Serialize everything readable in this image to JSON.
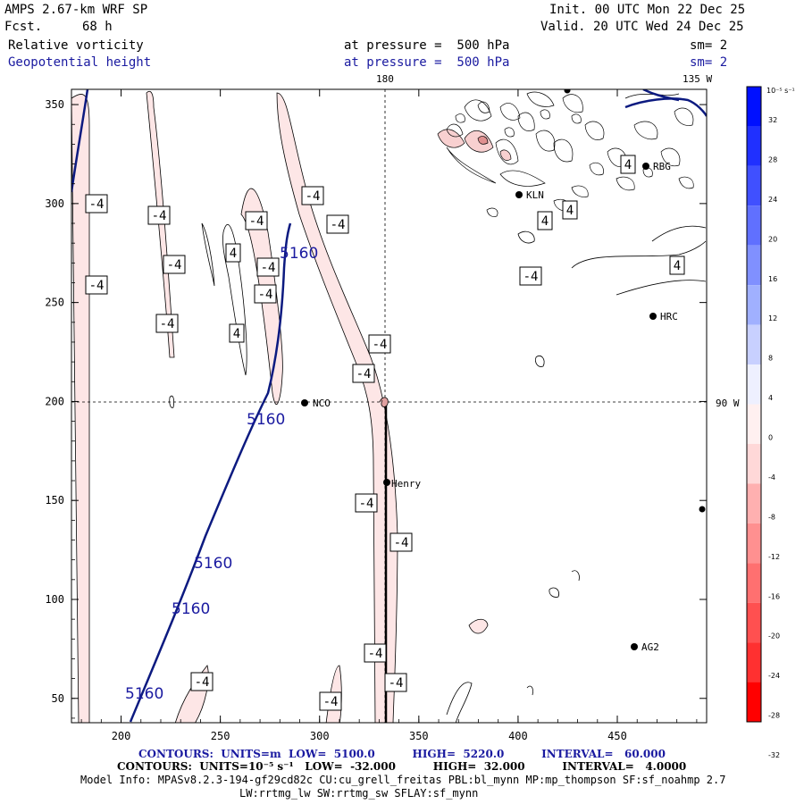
{
  "header": {
    "model": "AMPS 2.67-km WRF SP",
    "fcst_label": "Fcst.",
    "fcst_value": "68 h",
    "init": "Init. 00 UTC Mon 22 Dec 25",
    "valid": "Valid. 20 UTC Wed 24 Dec 25",
    "field1_name": "Relative vorticity",
    "field1_level": "at pressure =  500 hPa",
    "field1_sm": "sm= 2",
    "field2_name": "Geopotential height",
    "field2_level": "at pressure =  500 hPa",
    "field2_sm": "sm= 2"
  },
  "colors": {
    "height_contour": "#0c1a80",
    "vort_contour": "#000000",
    "shade_light": "#fde6e6",
    "accent_blue": "#1a1aa0"
  },
  "map": {
    "x_ticks": [
      "200",
      "250",
      "300",
      "350",
      "400",
      "450"
    ],
    "y_ticks": [
      "350",
      "300",
      "250",
      "200",
      "150",
      "100",
      "50"
    ],
    "lon_top_180": "180",
    "lon_top_135w": "135 W",
    "lon_right_90w": "90 W",
    "stations": [
      {
        "name": "NCO",
        "lx": "NCO"
      },
      {
        "name": "Henry",
        "lx": "Henry"
      },
      {
        "name": "HRC",
        "lx": "HRC"
      },
      {
        "name": "RBG",
        "lx": "RBG"
      },
      {
        "name": "KLN",
        "lx": "KLN"
      },
      {
        "name": "AG2",
        "lx": "AG2"
      }
    ],
    "height_labels": [
      "5160",
      "5160",
      "5160",
      "5160",
      "5160"
    ],
    "vort_labels_neg": "-4",
    "vort_labels_pos": "4"
  },
  "colorbar": {
    "unit": "10⁻⁵ s⁻¹",
    "labels": [
      "32",
      "28",
      "24",
      "20",
      "16",
      "12",
      "8",
      "4",
      "0",
      "-4",
      "-8",
      "-12",
      "-16",
      "-20",
      "-24",
      "-28",
      "-32"
    ],
    "colors": [
      "#0010ff",
      "#2030ff",
      "#4050ff",
      "#6070ff",
      "#8090ff",
      "#a0b0ff",
      "#c8d0ff",
      "#eef0ff",
      "#fff0f0",
      "#ffd8d8",
      "#ffb0b0",
      "#ff9090",
      "#ff7070",
      "#ff5050",
      "#ff3030",
      "#ff0000"
    ]
  },
  "footer": {
    "line1": "CONTOURS:  UNITS=m  LOW=  5100.0          HIGH=  5220.0          INTERVAL=   60.000",
    "line2": "CONTOURS:  UNITS=10⁻⁵ s⁻¹   LOW=  -32.000          HIGH=  32.000          INTERVAL=   4.0000",
    "line3": "Model Info: MPASv8.2.3-194-gf29cd82c CU:cu_grell_freitas PBL:bl_mynn MP:mp_thompson SF:sf_noahmp 2.7",
    "line4": "LW:rrtmg_lw SW:rrtmg_sw SFLAY:sf_mynn"
  }
}
